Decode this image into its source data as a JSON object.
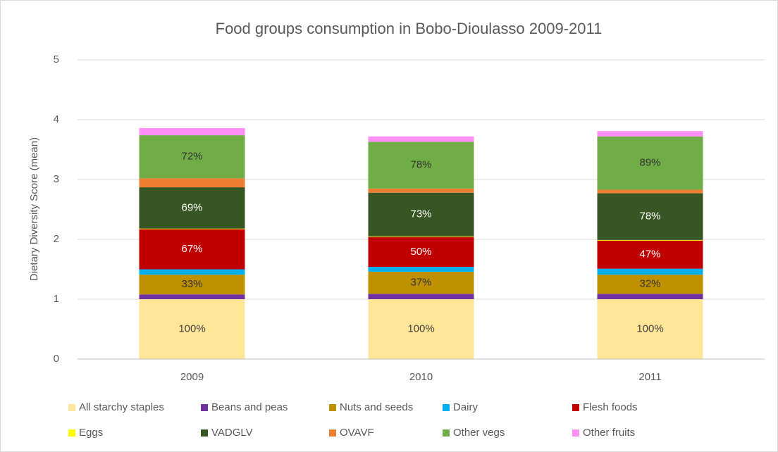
{
  "chart_data": {
    "type": "stacked_bar",
    "title": "Food groups consumption in Bobo-Dioulasso 2009-2011",
    "y_label": "Dietary Diversity Score (mean)",
    "categories": [
      "2009",
      "2010",
      "2011"
    ],
    "ylim": [
      0,
      5
    ],
    "yticks": [
      0,
      1,
      2,
      3,
      4,
      5
    ],
    "grid": true,
    "legend": "bottom",
    "series": [
      {
        "name": "All starchy staples",
        "color": "#ffe699",
        "values": [
          1.0,
          1.0,
          1.0
        ],
        "value_labels": [
          "100%",
          "100%",
          "100%"
        ]
      },
      {
        "name": "Beans and peas",
        "color": "#7030a0",
        "values": [
          0.08,
          0.09,
          0.09
        ]
      },
      {
        "name": "Nuts and seeds",
        "color": "#bf9000",
        "values": [
          0.33,
          0.37,
          0.32
        ],
        "value_labels": [
          "33%",
          "37%",
          "32%"
        ]
      },
      {
        "name": "Dairy",
        "color": "#00b0f0",
        "values": [
          0.09,
          0.08,
          0.1
        ]
      },
      {
        "name": "Flesh foods",
        "color": "#c00000",
        "values": [
          0.67,
          0.5,
          0.47
        ],
        "value_labels": [
          "67%",
          "50%",
          "47%"
        ]
      },
      {
        "name": "Eggs",
        "color": "#ffff00",
        "values": [
          0.01,
          0.01,
          0.01
        ]
      },
      {
        "name": "VADGLV",
        "color": "#375623",
        "values": [
          0.69,
          0.73,
          0.78
        ],
        "value_labels": [
          "69%",
          "73%",
          "78%"
        ]
      },
      {
        "name": "OVAVF",
        "color": "#ed7d31",
        "values": [
          0.15,
          0.07,
          0.06
        ]
      },
      {
        "name": "Other vegs",
        "color": "#70ad47",
        "values": [
          0.72,
          0.78,
          0.89
        ],
        "value_labels": [
          "72%",
          "78%",
          "89%"
        ]
      },
      {
        "name": "Other fruits",
        "color": "#ff8ff4",
        "values": [
          0.12,
          0.09,
          0.09
        ]
      }
    ]
  }
}
